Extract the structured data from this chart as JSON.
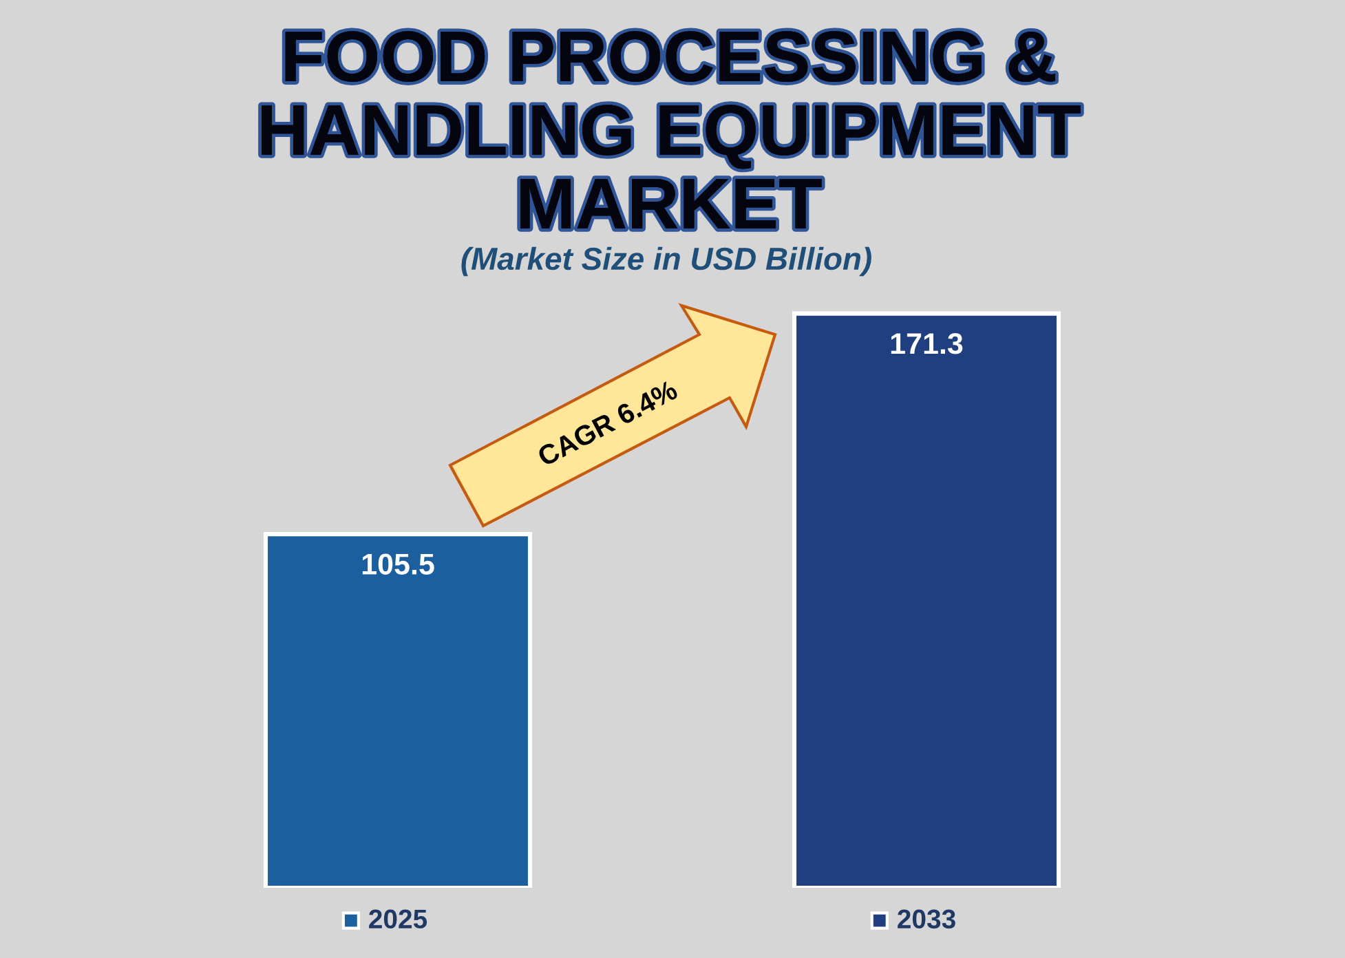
{
  "chart_data": {
    "type": "bar",
    "title": "FOOD PROCESSING &\nHANDLING EQUIPMENT\nMARKET",
    "subtitle": "(Market Size in USD Billion)",
    "categories": [
      "2025",
      "2033"
    ],
    "values": [
      105.5,
      171.3
    ],
    "colors": [
      "#1c5f9e",
      "#203f80"
    ],
    "data_labels": true,
    "tick_labels": "x",
    "annotations": [
      "CAGR 6.4%"
    ]
  }
}
